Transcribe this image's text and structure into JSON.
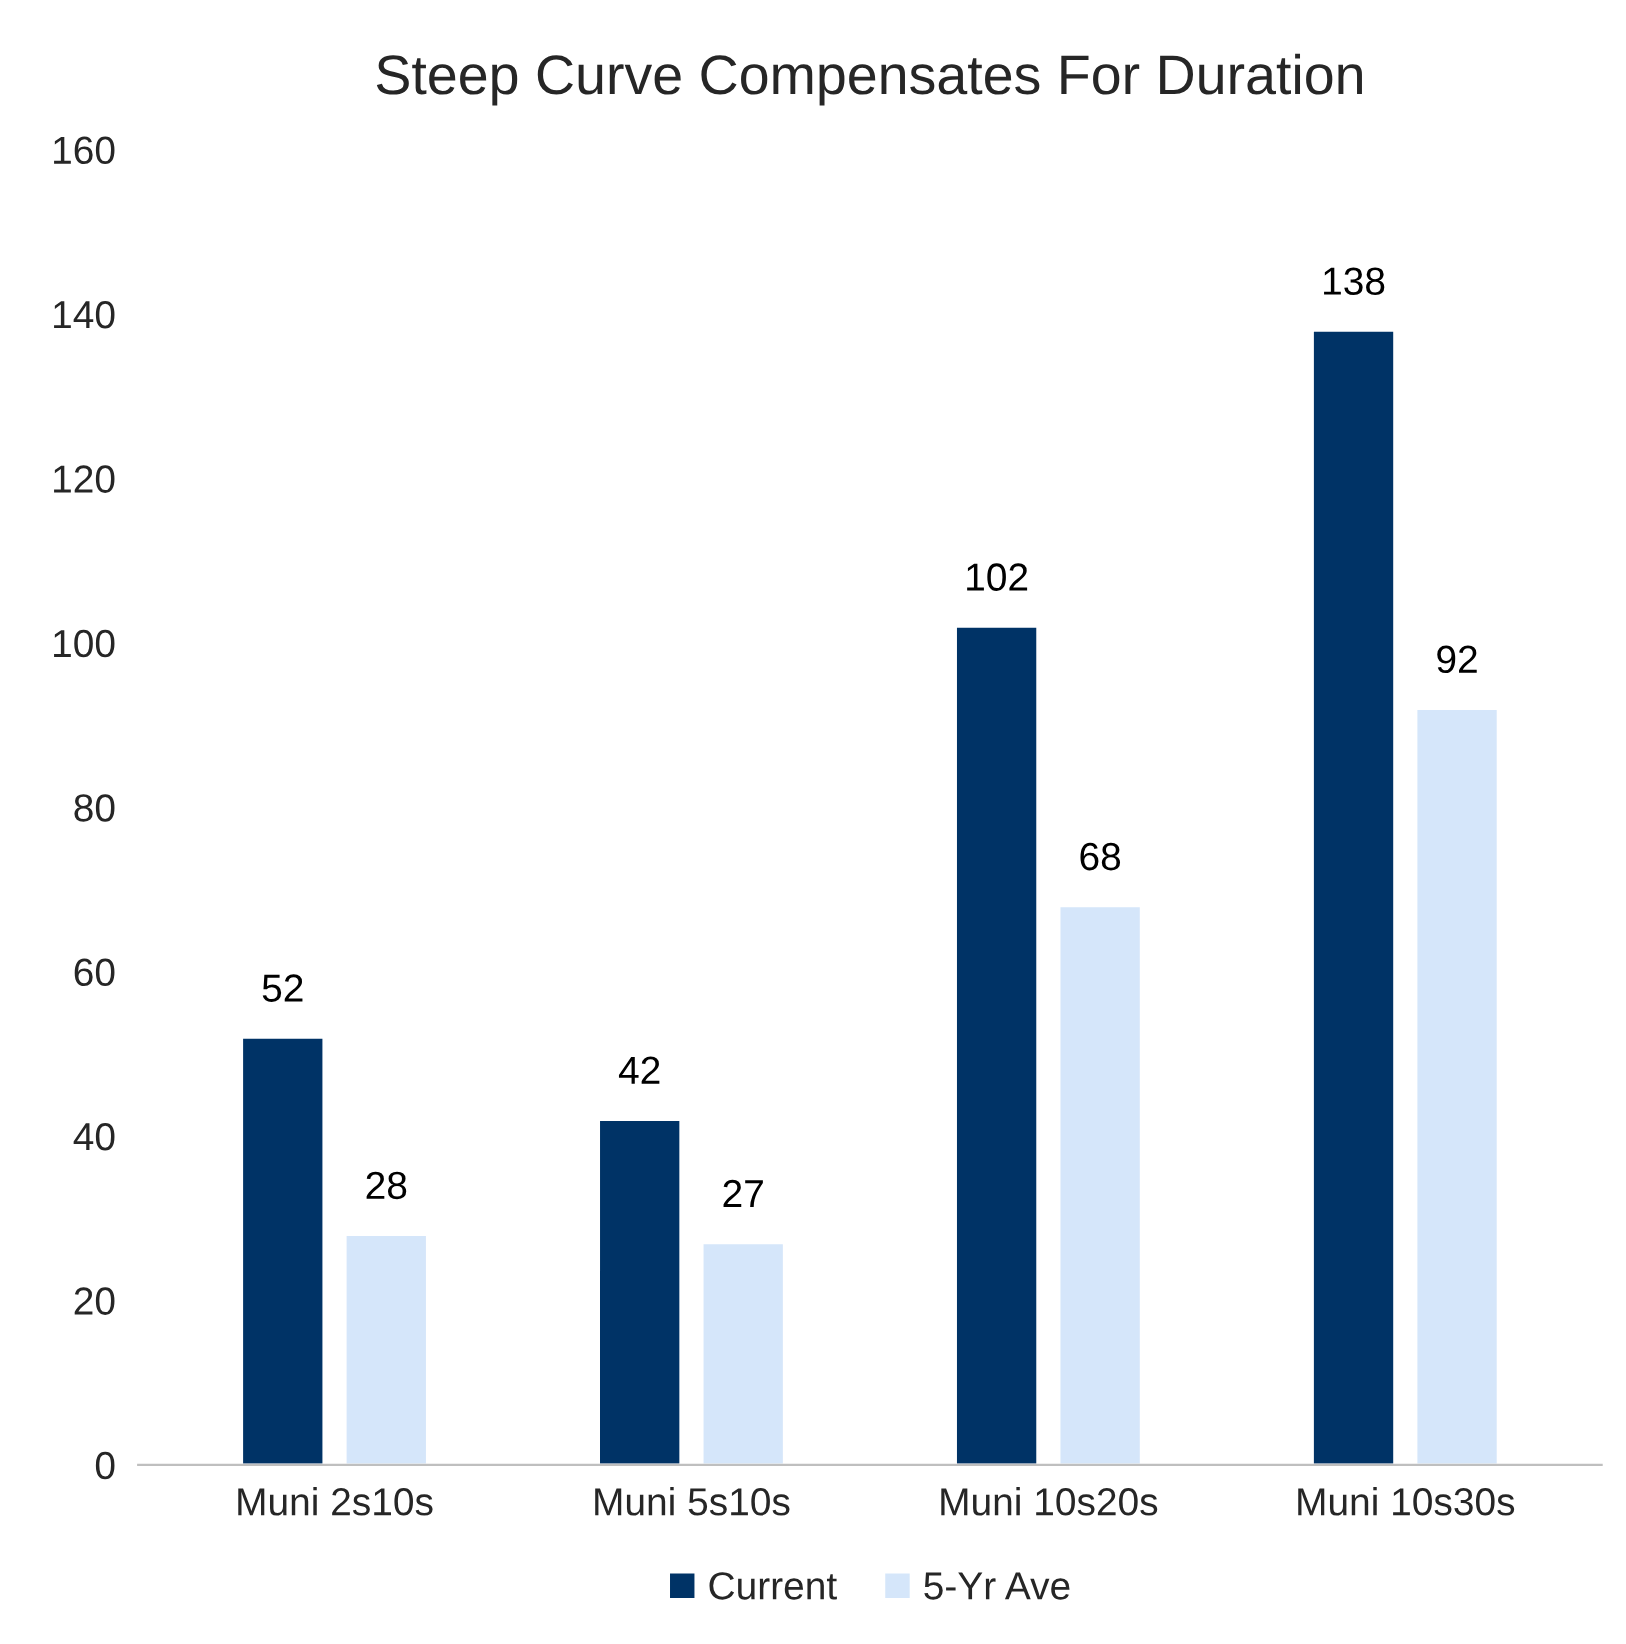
{
  "chart_data": {
    "type": "bar",
    "title": "Steep Curve Compensates For Duration",
    "categories": [
      "Muni 2s10s",
      "Muni 5s10s",
      "Muni 10s20s",
      "Muni 10s30s"
    ],
    "series": [
      {
        "name": "Current",
        "color": "#003366",
        "values": [
          52,
          42,
          102,
          138
        ]
      },
      {
        "name": "5-Yr Ave",
        "color": "#d5e6fa",
        "values": [
          28,
          27,
          68,
          92
        ]
      }
    ],
    "ylim": [
      0,
      160
    ],
    "yticks": [
      0,
      20,
      40,
      60,
      80,
      100,
      120,
      140,
      160
    ],
    "data_labels": true,
    "grid": false,
    "legend": "bottom"
  }
}
